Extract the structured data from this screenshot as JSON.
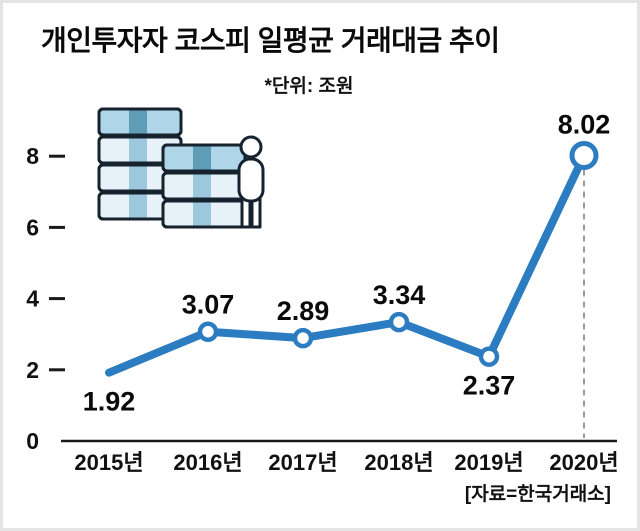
{
  "page": {
    "title": "개인투자자 코스피 일평균 거래대금 추이",
    "unit_label": "*단위: 조원",
    "source_label": "[자료=한국거래소]"
  },
  "icons": {
    "illustration": "money-stacks-and-investor"
  },
  "chart_data": {
    "type": "line",
    "title": "개인투자자 코스피 일평균 거래대금 추이",
    "unit": "조원",
    "categories": [
      "2015년",
      "2016년",
      "2017년",
      "2018년",
      "2019년",
      "2020년"
    ],
    "values": [
      1.92,
      3.07,
      2.89,
      3.34,
      2.37,
      8.02
    ],
    "yticks": [
      0,
      2,
      4,
      6,
      8
    ],
    "ylim": [
      0,
      8.8
    ],
    "grid": false,
    "legend": "none",
    "line_color": "#2b7cc1",
    "point_fill": "#ffffff",
    "dashed_guide_color": "#9b9b9b",
    "markers": [
      false,
      true,
      true,
      true,
      true,
      true
    ],
    "value_label_position": [
      "below",
      "above",
      "above",
      "above",
      "below",
      "above"
    ],
    "highlight_index": 5,
    "source": "[자료=한국거래소]"
  }
}
